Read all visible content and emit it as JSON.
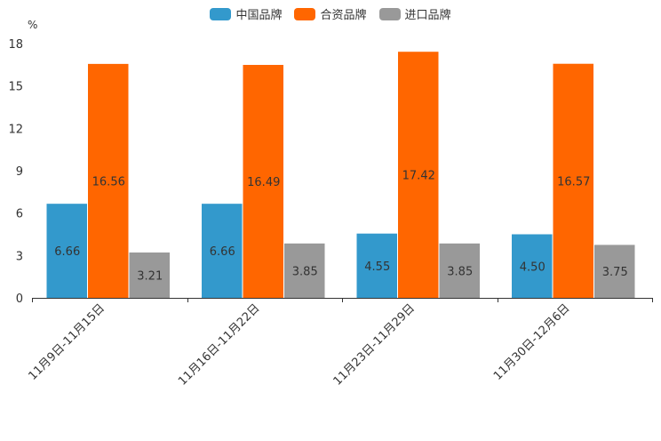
{
  "chart_data": {
    "type": "bar",
    "unit": "%",
    "categories": [
      "11月9日-11月15日",
      "11月16日-11月22日",
      "11月23日-11月29日",
      "11月30日-12月6日"
    ],
    "series": [
      {
        "name": "中国品牌",
        "color": "#3399cc",
        "values": [
          6.66,
          6.66,
          4.55,
          4.5
        ]
      },
      {
        "name": "合资品牌",
        "color": "#ff6600",
        "values": [
          16.56,
          16.49,
          17.42,
          16.57
        ]
      },
      {
        "name": "进口品牌",
        "color": "#999999",
        "values": [
          3.21,
          3.85,
          3.85,
          3.75
        ]
      }
    ],
    "value_labels": [
      [
        "6.66",
        "6.66",
        "4.55",
        "4.50"
      ],
      [
        "16.56",
        "16.49",
        "17.42",
        "16.57"
      ],
      [
        "3.21",
        "3.85",
        "3.85",
        "3.75"
      ]
    ],
    "ylim": [
      0,
      18
    ],
    "yticks": [
      0,
      3,
      6,
      9,
      12,
      15,
      18
    ],
    "legend_position": "top-center",
    "grid": false
  }
}
